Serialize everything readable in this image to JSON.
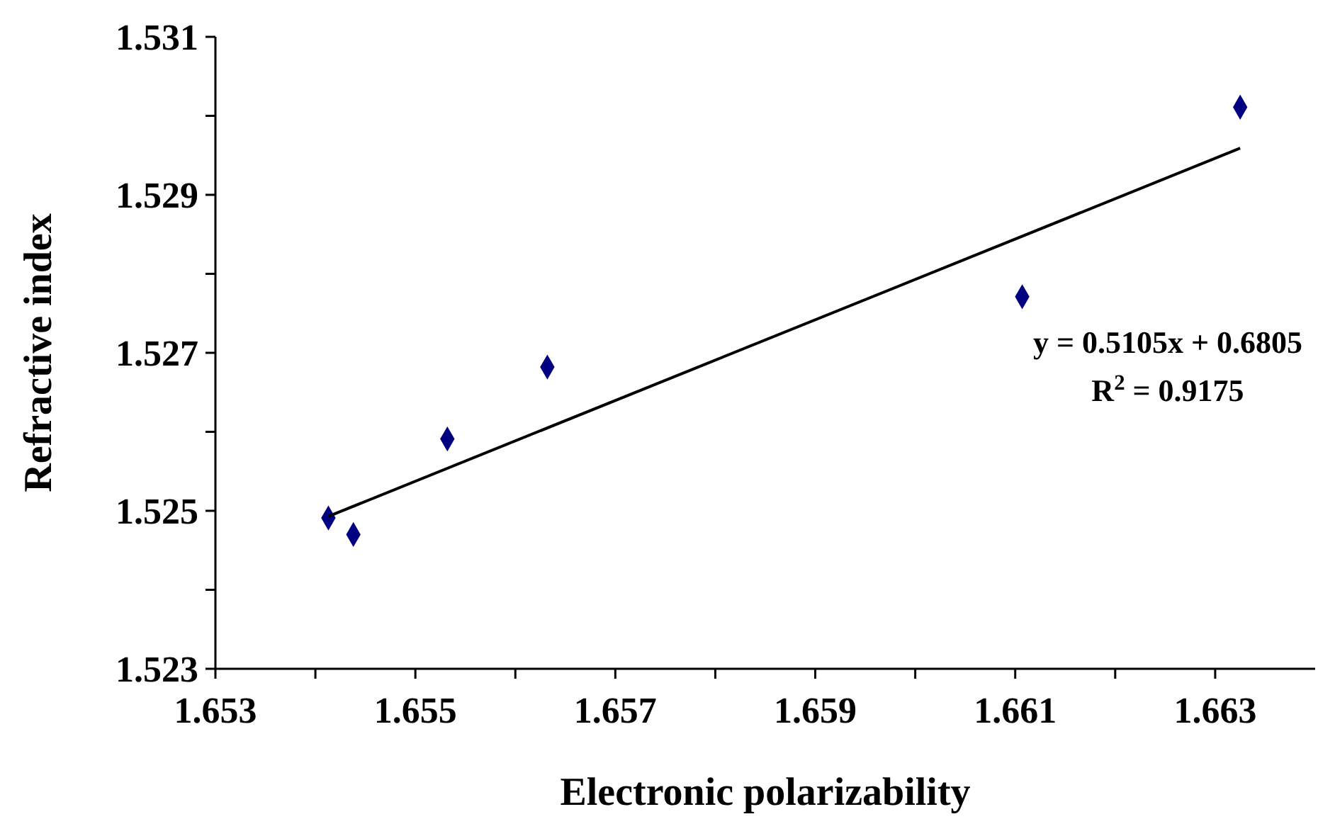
{
  "chart_data": {
    "type": "scatter",
    "xlabel": "Electronic polarizability",
    "ylabel": "Refractive index",
    "xlim": [
      1.653,
      1.664
    ],
    "xticks": [
      1.653,
      {
        "value": 1.654,
        "label": null
      },
      1.655,
      {
        "value": 1.656,
        "label": null
      },
      1.657,
      {
        "value": 1.658,
        "label": null
      },
      1.659,
      {
        "value": 1.66,
        "label": null
      },
      1.661,
      {
        "value": 1.662,
        "label": null
      },
      1.663
    ],
    "ylim": [
      1.523,
      1.531
    ],
    "yticks": [
      1.523,
      {
        "value": 1.524,
        "label": null
      },
      1.525,
      {
        "value": 1.526,
        "label": null
      },
      1.527,
      {
        "value": 1.528,
        "label": null
      },
      1.529,
      {
        "value": 1.53,
        "label": null
      },
      1.531
    ],
    "grid": false,
    "series": [
      {
        "marker": "diamond",
        "color": "#000080",
        "x": [
          1.65413,
          1.65438,
          1.65532,
          1.65632,
          1.66107,
          1.66325
        ],
        "values": [
          1.52491,
          1.5247,
          1.52591,
          1.52682,
          1.52771,
          1.53011
        ]
      },
      {
        "type": "line",
        "marker": "none",
        "color": "#000000",
        "x": [
          1.65413,
          1.66325
        ],
        "values": [
          1.52493,
          1.52959
        ]
      }
    ],
    "annotations": [
      "y = 0.5105x + 0.6805",
      "R$^{2}$ = 0.9175"
    ]
  }
}
